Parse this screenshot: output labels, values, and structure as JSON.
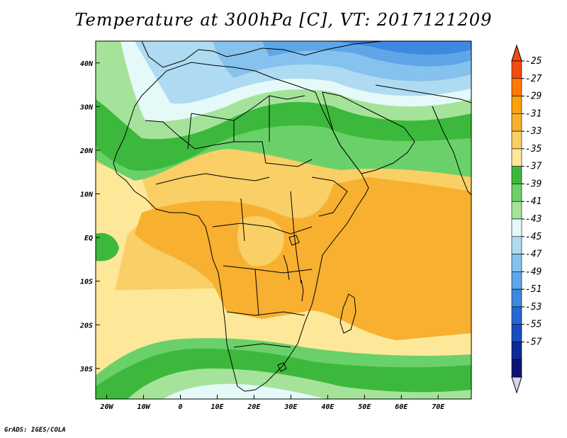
{
  "title": "Temperature at 300hPa [C], VT: 2017121209",
  "footer": "GrADS: IGES/COLA",
  "map": {
    "lon_range": [
      -23,
      79
    ],
    "lat_range": [
      -37,
      45
    ],
    "lon_ticks": [
      {
        "value": -20,
        "label": "20W"
      },
      {
        "value": -10,
        "label": "10W"
      },
      {
        "value": 0,
        "label": "0"
      },
      {
        "value": 10,
        "label": "10E"
      },
      {
        "value": 20,
        "label": "20E"
      },
      {
        "value": 30,
        "label": "30E"
      },
      {
        "value": 40,
        "label": "40E"
      },
      {
        "value": 50,
        "label": "50E"
      },
      {
        "value": 60,
        "label": "60E"
      },
      {
        "value": 70,
        "label": "70E"
      }
    ],
    "lat_ticks": [
      {
        "value": 40,
        "label": "40N"
      },
      {
        "value": 30,
        "label": "30N"
      },
      {
        "value": 20,
        "label": "20N"
      },
      {
        "value": 10,
        "label": "10N"
      },
      {
        "value": 0,
        "label": "EQ"
      },
      {
        "value": -10,
        "label": "10S"
      },
      {
        "value": -20,
        "label": "20S"
      },
      {
        "value": -30,
        "label": "30S"
      }
    ]
  },
  "colorbar": {
    "labels": [
      "-25",
      "-27",
      "-29",
      "-31",
      "-33",
      "-35",
      "-37",
      "-39",
      "-41",
      "-43",
      "-45",
      "-47",
      "-49",
      "-51",
      "-53",
      "-55",
      "-57"
    ],
    "colors": [
      "#f24a0f",
      "#ff7a00",
      "#ffa20a",
      "#f7b030",
      "#f9cf66",
      "#fde89a",
      "#3cb93c",
      "#6ad16a",
      "#a6e39a",
      "#e5faf8",
      "#aedbf2",
      "#86c2ee",
      "#5fa6e8",
      "#3e88e0",
      "#2668d3",
      "#1a4cbc",
      "#0e2a96",
      "#0a1470"
    ],
    "top_arrow_color": "#f24a0f",
    "bottom_arrow_color": "#d8d4f0"
  }
}
